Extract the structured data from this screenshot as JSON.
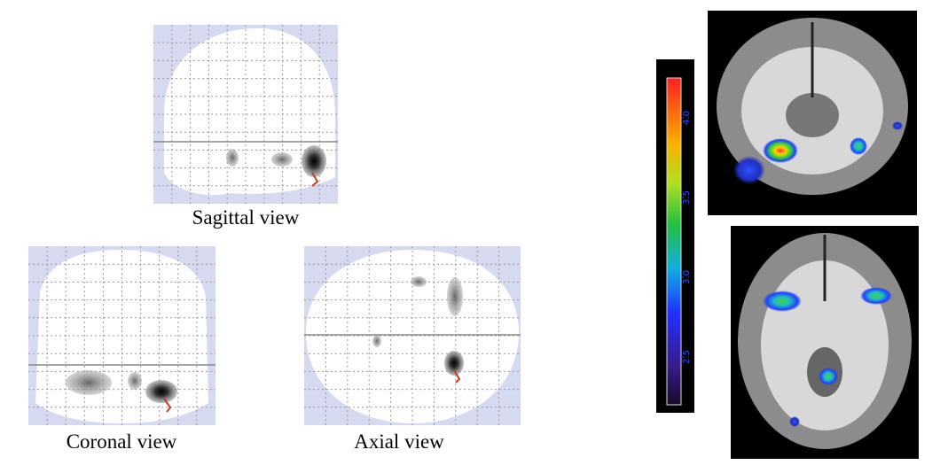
{
  "views": {
    "sagittal": "Sagittal view",
    "coronal": "Coronal view",
    "axial": "Axial view"
  },
  "colorbar": {
    "lim": [
      2.2,
      4.25
    ],
    "ticks": [
      {
        "value": 2.5,
        "label": "2.5"
      },
      {
        "value": 3,
        "label": "3.0"
      },
      {
        "value": 3.5,
        "label": "3.5"
      },
      {
        "value": 4,
        "label": "4.0"
      }
    ]
  }
}
